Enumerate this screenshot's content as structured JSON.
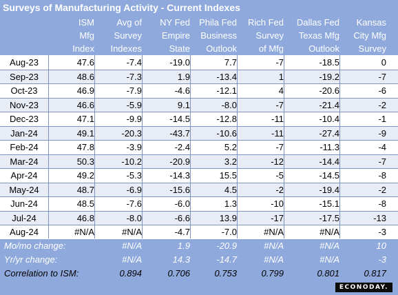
{
  "title": "Surveys of Manufacturing Activity - Current Indexes",
  "columns": [
    "ISM\nMfg\nIndex",
    "Avg of\nSurvey\nIndexes",
    "NY Fed\nEmpire\nState",
    "Phila Fed\nBusiness\nOutlook",
    "Rich Fed\nSurvey\nof Mfg",
    "Dallas Fed\nTexas Mfg\nOutlook",
    "Kansas\nCity Mfg\nSurvey"
  ],
  "rows": [
    {
      "label": "Aug-23",
      "values": [
        "47.6",
        "-7.4",
        "-19.0",
        "7.7",
        "-7",
        "-18.5",
        "0"
      ]
    },
    {
      "label": "Sep-23",
      "values": [
        "48.6",
        "-7.3",
        "1.9",
        "-13.4",
        "1",
        "-19.2",
        "-7"
      ]
    },
    {
      "label": "Oct-23",
      "values": [
        "46.9",
        "-7.9",
        "-4.6",
        "-12.1",
        "4",
        "-20.6",
        "-6"
      ]
    },
    {
      "label": "Nov-23",
      "values": [
        "46.6",
        "-5.9",
        "9.1",
        "-8.0",
        "-7",
        "-21.4",
        "-2"
      ]
    },
    {
      "label": "Dec-23",
      "values": [
        "47.1",
        "-9.9",
        "-14.5",
        "-12.8",
        "-11",
        "-10.4",
        "-1"
      ]
    },
    {
      "label": "Jan-24",
      "values": [
        "49.1",
        "-20.3",
        "-43.7",
        "-10.6",
        "-11",
        "-27.4",
        "-9"
      ]
    },
    {
      "label": "Feb-24",
      "values": [
        "47.8",
        "-3.9",
        "-2.4",
        "5.2",
        "-7",
        "-11.3",
        "-4"
      ]
    },
    {
      "label": "Mar-24",
      "values": [
        "50.3",
        "-10.2",
        "-20.9",
        "3.2",
        "-12",
        "-14.4",
        "-7"
      ]
    },
    {
      "label": "Apr-24",
      "values": [
        "49.2",
        "-5.3",
        "-14.3",
        "15.5",
        "-5",
        "-14.5",
        "-8"
      ]
    },
    {
      "label": "May-24",
      "values": [
        "48.7",
        "-6.9",
        "-15.6",
        "4.5",
        "-2",
        "-19.4",
        "-2"
      ]
    },
    {
      "label": "Jun-24",
      "values": [
        "48.5",
        "-7.6",
        "-6.0",
        "1.3",
        "-10",
        "-15.1",
        "-8"
      ]
    },
    {
      "label": "Jul-24",
      "values": [
        "46.8",
        "-8.0",
        "-6.6",
        "13.9",
        "-17",
        "-17.5",
        "-13"
      ]
    },
    {
      "label": "Aug-24",
      "values": [
        "#N/A",
        "#N/A",
        "-4.7",
        "-7.0",
        "#N/A",
        "#N/A",
        "-3"
      ]
    }
  ],
  "mom": {
    "label": "Mo/mo change:",
    "values": [
      "",
      "#N/A",
      "1.9",
      "-20.9",
      "#N/A",
      "#N/A",
      "10"
    ]
  },
  "yoy": {
    "label": "Yr/yr change:",
    "values": [
      "",
      "#N/A",
      "14.3",
      "-14.7",
      "#N/A",
      "#N/A",
      "-3"
    ]
  },
  "correlation": {
    "label": "Correlation to ISM:",
    "values": [
      "",
      "0.894",
      "0.706",
      "0.753",
      "0.799",
      "0.801",
      "0.817"
    ]
  },
  "brand": "ECONODAY.",
  "colors": {
    "header": "#8fa9dc",
    "band": "#e8ecf5",
    "grid": "#7d93c4"
  }
}
